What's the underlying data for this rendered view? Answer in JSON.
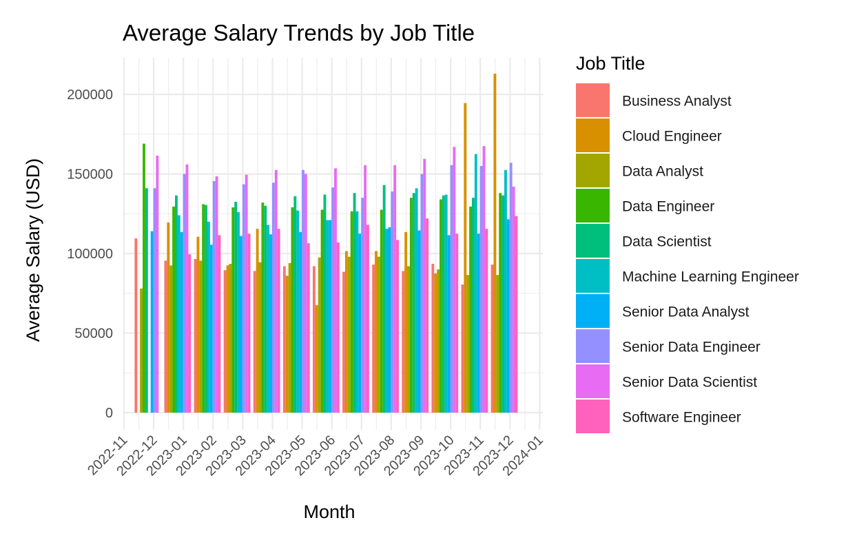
{
  "chart_data": {
    "type": "bar",
    "title": "Average Salary Trends by Job Title",
    "xlabel": "Month",
    "ylabel": "Average Salary (USD)",
    "legend_title": "Job Title",
    "legend_position": "right",
    "grid": true,
    "x_ticks": [
      "2022-11",
      "2022-12",
      "2023-01",
      "2023-02",
      "2023-03",
      "2023-04",
      "2023-05",
      "2023-06",
      "2023-07",
      "2023-08",
      "2023-09",
      "2023-10",
      "2023-11",
      "2023-12",
      "2024-01"
    ],
    "y_ticks": [
      "0",
      "50000",
      "100000",
      "150000",
      "200000"
    ],
    "ylim": [
      -10000,
      222000
    ],
    "categories": [
      "2022-12",
      "2023-01",
      "2023-02",
      "2023-03",
      "2023-04",
      "2023-05",
      "2023-06",
      "2023-07",
      "2023-08",
      "2023-09",
      "2023-10",
      "2023-11",
      "2023-12"
    ],
    "series": [
      {
        "name": "Business Analyst",
        "color": "#F8766D",
        "values": [
          109500,
          95500,
          96500,
          89500,
          89000,
          92000,
          92000,
          88500,
          93000,
          89000,
          93500,
          80500,
          93000
        ]
      },
      {
        "name": "Cloud Engineer",
        "color": "#D89000",
        "values": [
          null,
          119500,
          110500,
          92500,
          115500,
          86000,
          67500,
          101500,
          101500,
          113500,
          87500,
          194500,
          213000
        ]
      },
      {
        "name": "Data Analyst",
        "color": "#A3A500",
        "values": [
          78000,
          92500,
          95500,
          93500,
          94500,
          94000,
          97500,
          98000,
          98000,
          92000,
          90000,
          86500,
          86500
        ]
      },
      {
        "name": "Data Engineer",
        "color": "#39B600",
        "values": [
          169000,
          129500,
          131000,
          129000,
          132000,
          129000,
          127500,
          126500,
          127500,
          135000,
          134000,
          129500,
          138000
        ]
      },
      {
        "name": "Data Scientist",
        "color": "#00BF7D",
        "values": [
          141000,
          136500,
          130500,
          132500,
          130000,
          136000,
          137000,
          138000,
          143000,
          138000,
          136500,
          135000,
          136500
        ]
      },
      {
        "name": "Machine Learning Engineer",
        "color": "#00BFC4",
        "values": [
          null,
          124000,
          120000,
          126000,
          118000,
          127000,
          121000,
          126500,
          115500,
          141000,
          137000,
          162500,
          152500
        ]
      },
      {
        "name": "Senior Data Analyst",
        "color": "#00B0F6",
        "values": [
          114000,
          113500,
          105500,
          111000,
          112000,
          113500,
          121000,
          112500,
          116500,
          114500,
          111500,
          112500,
          121500
        ]
      },
      {
        "name": "Senior Data Engineer",
        "color": "#9590FF",
        "values": [
          141000,
          150000,
          145500,
          143500,
          144500,
          152500,
          141500,
          135000,
          139000,
          150000,
          155500,
          155000,
          157000
        ]
      },
      {
        "name": "Senior Data Scientist",
        "color": "#E76BF3",
        "values": [
          161500,
          156000,
          148500,
          149500,
          152500,
          150000,
          153500,
          155500,
          155500,
          159500,
          167000,
          167500,
          142000
        ]
      },
      {
        "name": "Software Engineer",
        "color": "#FF62BC",
        "values": [
          null,
          99500,
          111500,
          112500,
          115500,
          106500,
          107000,
          118000,
          108500,
          122000,
          112500,
          115500,
          123500
        ]
      }
    ]
  }
}
